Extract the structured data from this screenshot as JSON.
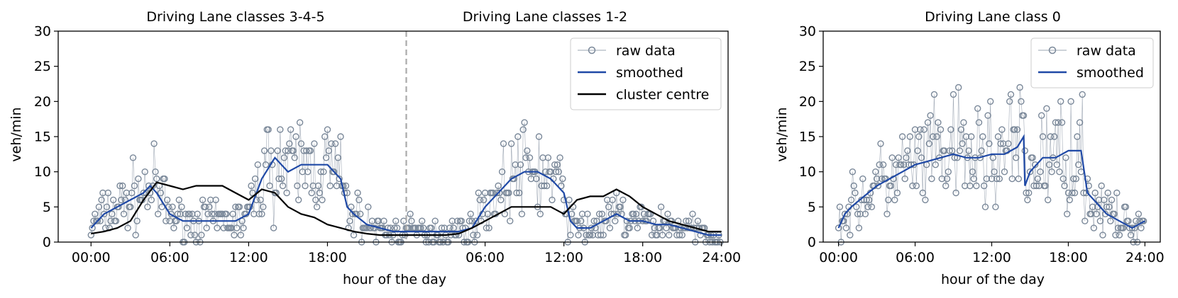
{
  "chart_data": [
    {
      "type": "line",
      "panel_titles": [
        "Driving Lane classes 3-4-5",
        "Driving Lane classes 1-2"
      ],
      "xlabel": "hour of the day",
      "ylabel": "veh/min",
      "xlim_hours": [
        -2.5,
        48.5
      ],
      "ylim": [
        0,
        30
      ],
      "yticks": [
        0,
        5,
        10,
        15,
        20,
        25,
        30
      ],
      "xtick_labels": [
        "00:00",
        "06:00",
        "12:00",
        "18:00",
        "06:00",
        "12:00",
        "18:00",
        "24:00"
      ],
      "xtick_hours": [
        0,
        6,
        12,
        18,
        30,
        36,
        42,
        48
      ],
      "divider_hour": 24,
      "legend": [
        "raw data",
        "smoothed",
        "cluster centre"
      ],
      "legend_position": "upper right",
      "series": [
        {
          "name": "smoothed",
          "x_hours": [
            0,
            1,
            2,
            3,
            4,
            4.5,
            5,
            6,
            7,
            8,
            9,
            10,
            11,
            12,
            13,
            14,
            15,
            16,
            17,
            18,
            19,
            19.5,
            20,
            21,
            22,
            23,
            24,
            25,
            26,
            27,
            28,
            29,
            30,
            31,
            32,
            33,
            34,
            35,
            36,
            36.5,
            37,
            38,
            39,
            40,
            41,
            42,
            43,
            44,
            45,
            46,
            47,
            48
          ],
          "values": [
            2,
            4,
            5,
            6,
            7,
            8,
            7,
            4,
            3,
            3,
            3,
            3,
            3,
            4,
            9,
            12,
            10,
            11,
            11,
            11,
            9,
            5,
            4,
            2.5,
            2,
            1.5,
            1.5,
            1.5,
            1.5,
            1.5,
            1.5,
            2,
            5,
            7,
            9,
            10,
            10,
            9,
            7,
            3,
            2,
            2,
            3,
            4,
            3,
            3,
            2.5,
            2.5,
            2,
            1.5,
            1,
            1
          ]
        },
        {
          "name": "cluster centre",
          "x_hours": [
            0,
            1,
            2,
            3,
            4,
            5,
            6,
            7,
            8,
            9,
            10,
            11,
            12,
            13,
            14,
            15,
            16,
            17,
            18,
            19,
            20,
            21,
            22,
            23,
            24,
            25,
            26,
            27,
            28,
            29,
            30,
            31,
            32,
            33,
            34,
            35,
            36,
            37,
            38,
            39,
            40,
            41,
            42,
            43,
            44,
            45,
            46,
            47,
            48
          ],
          "values": [
            1.2,
            1.5,
            2,
            3,
            6,
            8.5,
            8,
            7.5,
            8,
            8,
            8,
            7,
            6,
            7.5,
            7,
            5,
            4,
            3.5,
            2.5,
            2,
            1.5,
            1.2,
            1,
            1,
            1,
            1,
            1,
            1,
            1.2,
            2,
            3,
            4,
            5,
            5,
            5,
            5,
            4,
            6,
            6.5,
            6.5,
            7.5,
            6.5,
            5,
            4,
            3,
            2.5,
            2,
            1.5,
            1.5
          ]
        }
      ]
    },
    {
      "type": "line",
      "panel_title": "Driving Lane class 0",
      "xlabel": "hour of the day",
      "ylabel": "veh/min",
      "xlim_hours": [
        -1.2,
        25.2
      ],
      "ylim": [
        0,
        30
      ],
      "yticks": [
        0,
        5,
        10,
        15,
        20,
        25,
        30
      ],
      "xtick_labels": [
        "00:00",
        "06:00",
        "12:00",
        "18:00",
        "24:00"
      ],
      "xtick_hours": [
        0,
        6,
        12,
        18,
        24
      ],
      "legend": [
        "raw data",
        "smoothed"
      ],
      "legend_position": "upper right",
      "series": [
        {
          "name": "smoothed",
          "x_hours": [
            0,
            0.5,
            1,
            2,
            3,
            4,
            5,
            6,
            7,
            8,
            9,
            10,
            11,
            12,
            13,
            14,
            14.5,
            14.6,
            15,
            16,
            17,
            18,
            19,
            19.5,
            20,
            21,
            22,
            23,
            24
          ],
          "values": [
            2,
            4,
            5,
            6.5,
            8,
            9,
            10,
            11,
            11.5,
            12,
            12.5,
            12,
            12,
            12.5,
            12.5,
            13.5,
            15,
            8,
            10,
            12,
            12,
            13,
            13,
            7,
            6,
            4,
            3,
            2,
            3
          ]
        }
      ]
    }
  ]
}
